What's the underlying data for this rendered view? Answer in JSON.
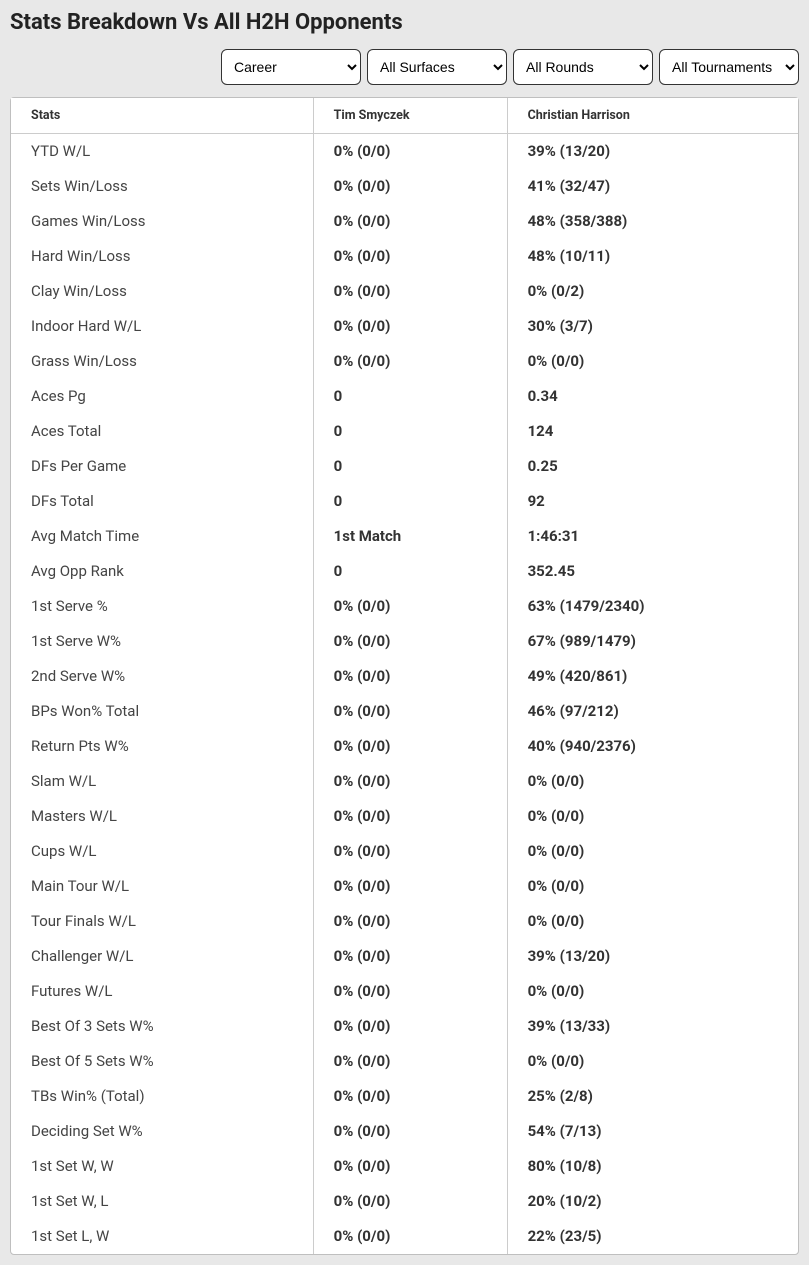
{
  "title": "Stats Breakdown Vs All H2H Opponents",
  "filters": {
    "career": "Career",
    "surfaces": "All Surfaces",
    "rounds": "All Rounds",
    "tournaments": "All Tournaments"
  },
  "table": {
    "headers": {
      "stats": "Stats",
      "p1": "Tim Smyczek",
      "p2": "Christian Harrison"
    },
    "rows": [
      {
        "stat": "YTD W/L",
        "p1": "0% (0/0)",
        "p2": "39% (13/20)"
      },
      {
        "stat": "Sets Win/Loss",
        "p1": "0% (0/0)",
        "p2": "41% (32/47)"
      },
      {
        "stat": "Games Win/Loss",
        "p1": "0% (0/0)",
        "p2": "48% (358/388)"
      },
      {
        "stat": "Hard Win/Loss",
        "p1": "0% (0/0)",
        "p2": "48% (10/11)"
      },
      {
        "stat": "Clay Win/Loss",
        "p1": "0% (0/0)",
        "p2": "0% (0/2)"
      },
      {
        "stat": "Indoor Hard W/L",
        "p1": "0% (0/0)",
        "p2": "30% (3/7)"
      },
      {
        "stat": "Grass Win/Loss",
        "p1": "0% (0/0)",
        "p2": "0% (0/0)"
      },
      {
        "stat": "Aces Pg",
        "p1": "0",
        "p2": "0.34"
      },
      {
        "stat": "Aces Total",
        "p1": "0",
        "p2": "124"
      },
      {
        "stat": "DFs Per Game",
        "p1": "0",
        "p2": "0.25"
      },
      {
        "stat": "DFs Total",
        "p1": "0",
        "p2": "92"
      },
      {
        "stat": "Avg Match Time",
        "p1": "1st Match",
        "p2": "1:46:31"
      },
      {
        "stat": "Avg Opp Rank",
        "p1": "0",
        "p2": "352.45"
      },
      {
        "stat": "1st Serve %",
        "p1": "0% (0/0)",
        "p2": "63% (1479/2340)"
      },
      {
        "stat": "1st Serve W%",
        "p1": "0% (0/0)",
        "p2": "67% (989/1479)"
      },
      {
        "stat": "2nd Serve W%",
        "p1": "0% (0/0)",
        "p2": "49% (420/861)"
      },
      {
        "stat": "BPs Won% Total",
        "p1": "0% (0/0)",
        "p2": "46% (97/212)"
      },
      {
        "stat": "Return Pts W%",
        "p1": "0% (0/0)",
        "p2": "40% (940/2376)"
      },
      {
        "stat": "Slam W/L",
        "p1": "0% (0/0)",
        "p2": "0% (0/0)"
      },
      {
        "stat": "Masters W/L",
        "p1": "0% (0/0)",
        "p2": "0% (0/0)"
      },
      {
        "stat": "Cups W/L",
        "p1": "0% (0/0)",
        "p2": "0% (0/0)"
      },
      {
        "stat": "Main Tour W/L",
        "p1": "0% (0/0)",
        "p2": "0% (0/0)"
      },
      {
        "stat": "Tour Finals W/L",
        "p1": "0% (0/0)",
        "p2": "0% (0/0)"
      },
      {
        "stat": "Challenger W/L",
        "p1": "0% (0/0)",
        "p2": "39% (13/20)"
      },
      {
        "stat": "Futures W/L",
        "p1": "0% (0/0)",
        "p2": "0% (0/0)"
      },
      {
        "stat": "Best Of 3 Sets W%",
        "p1": "0% (0/0)",
        "p2": "39% (13/33)"
      },
      {
        "stat": "Best Of 5 Sets W%",
        "p1": "0% (0/0)",
        "p2": "0% (0/0)"
      },
      {
        "stat": "TBs Win% (Total)",
        "p1": "0% (0/0)",
        "p2": "25% (2/8)"
      },
      {
        "stat": "Deciding Set W%",
        "p1": "0% (0/0)",
        "p2": "54% (7/13)"
      },
      {
        "stat": "1st Set W, W",
        "p1": "0% (0/0)",
        "p2": "80% (10/8)"
      },
      {
        "stat": "1st Set W, L",
        "p1": "0% (0/0)",
        "p2": "20% (10/2)"
      },
      {
        "stat": "1st Set L, W",
        "p1": "0% (0/0)",
        "p2": "22% (23/5)"
      }
    ]
  }
}
